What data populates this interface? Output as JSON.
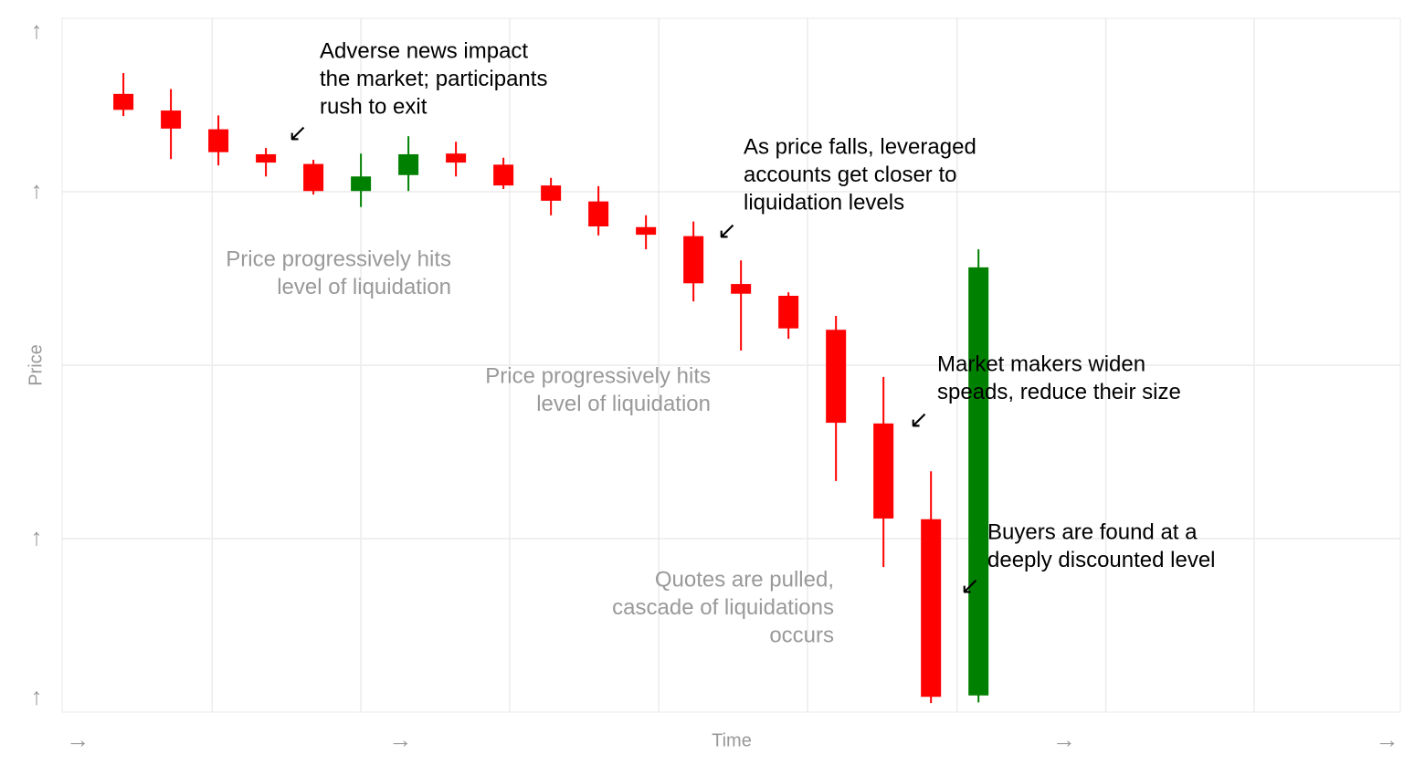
{
  "chart_data": {
    "type": "candlestick",
    "x_label": "Time",
    "y_label": "Price",
    "x": [
      1,
      2,
      3,
      4,
      5,
      6,
      7,
      8,
      9,
      10,
      11,
      12,
      13,
      14,
      15,
      16,
      17,
      18,
      19
    ],
    "open": [
      89.1,
      86.7,
      84.0,
      80.4,
      79.0,
      75.1,
      77.4,
      80.5,
      78.9,
      75.9,
      73.6,
      69.9,
      68.6,
      61.7,
      60.0,
      55.1,
      41.6,
      27.8,
      2.4
    ],
    "high": [
      92.1,
      89.8,
      86.0,
      81.3,
      79.6,
      80.5,
      83.0,
      82.2,
      79.9,
      77.0,
      75.8,
      71.6,
      70.7,
      65.1,
      60.5,
      57.1,
      48.3,
      34.7,
      66.7
    ],
    "low": [
      85.9,
      79.7,
      78.8,
      77.2,
      74.6,
      72.8,
      75.1,
      77.2,
      75.4,
      71.6,
      68.7,
      66.7,
      59.2,
      52.1,
      53.8,
      33.3,
      20.9,
      1.3,
      1.4
    ],
    "close": [
      86.8,
      84.1,
      80.7,
      79.2,
      75.1,
      77.2,
      80.4,
      79.2,
      75.9,
      73.7,
      70.0,
      68.8,
      61.8,
      60.3,
      55.3,
      41.7,
      27.9,
      2.2,
      64.1
    ],
    "up_color": "#008000",
    "down_color": "#ff0000",
    "xlim": [
      -0.29,
      27.88
    ],
    "ylim": [
      0,
      100
    ],
    "xticks": [
      {
        "value": 0.04,
        "label": "→"
      },
      {
        "value": 6.83,
        "label": "→"
      },
      {
        "value": 20.8,
        "label": "→"
      },
      {
        "value": 27.6,
        "label": "→"
      }
    ],
    "yticks": [
      {
        "value": 2,
        "label": "↑"
      },
      {
        "value": 25,
        "label": "↑"
      },
      {
        "value": 75,
        "label": "↑"
      },
      {
        "value": 98,
        "label": "↑"
      }
    ],
    "xgrid": [
      2.87,
      6.0,
      9.13,
      12.27,
      15.4,
      18.55,
      21.68,
      24.8
    ],
    "ygrid": [
      25,
      50,
      75
    ],
    "grid": true,
    "annotations": [
      {
        "lines": [
          "Adverse news impact",
          "the market; participants",
          "rush to exit"
        ],
        "arrow": "↙",
        "color": "#000000"
      },
      {
        "lines": [
          "As price falls, leveraged",
          "accounts get closer to",
          "liquidation levels"
        ],
        "arrow": "↙",
        "color": "#000000"
      },
      {
        "lines": [
          "Price progressively hits",
          "level of liquidation"
        ],
        "color": "#999999"
      },
      {
        "lines": [
          "Price progressively hits",
          "level of liquidation"
        ],
        "color": "#999999"
      },
      {
        "lines": [
          "Market makers widen",
          "speads, reduce their size"
        ],
        "arrow": "↙",
        "color": "#000000"
      },
      {
        "lines": [
          "Quotes are pulled,",
          "cascade of liquidations",
          "occurs"
        ],
        "color": "#999999"
      },
      {
        "lines": [
          "Buyers are found at a",
          "deeply discounted level"
        ],
        "arrow": "↙",
        "color": "#000000"
      }
    ]
  }
}
